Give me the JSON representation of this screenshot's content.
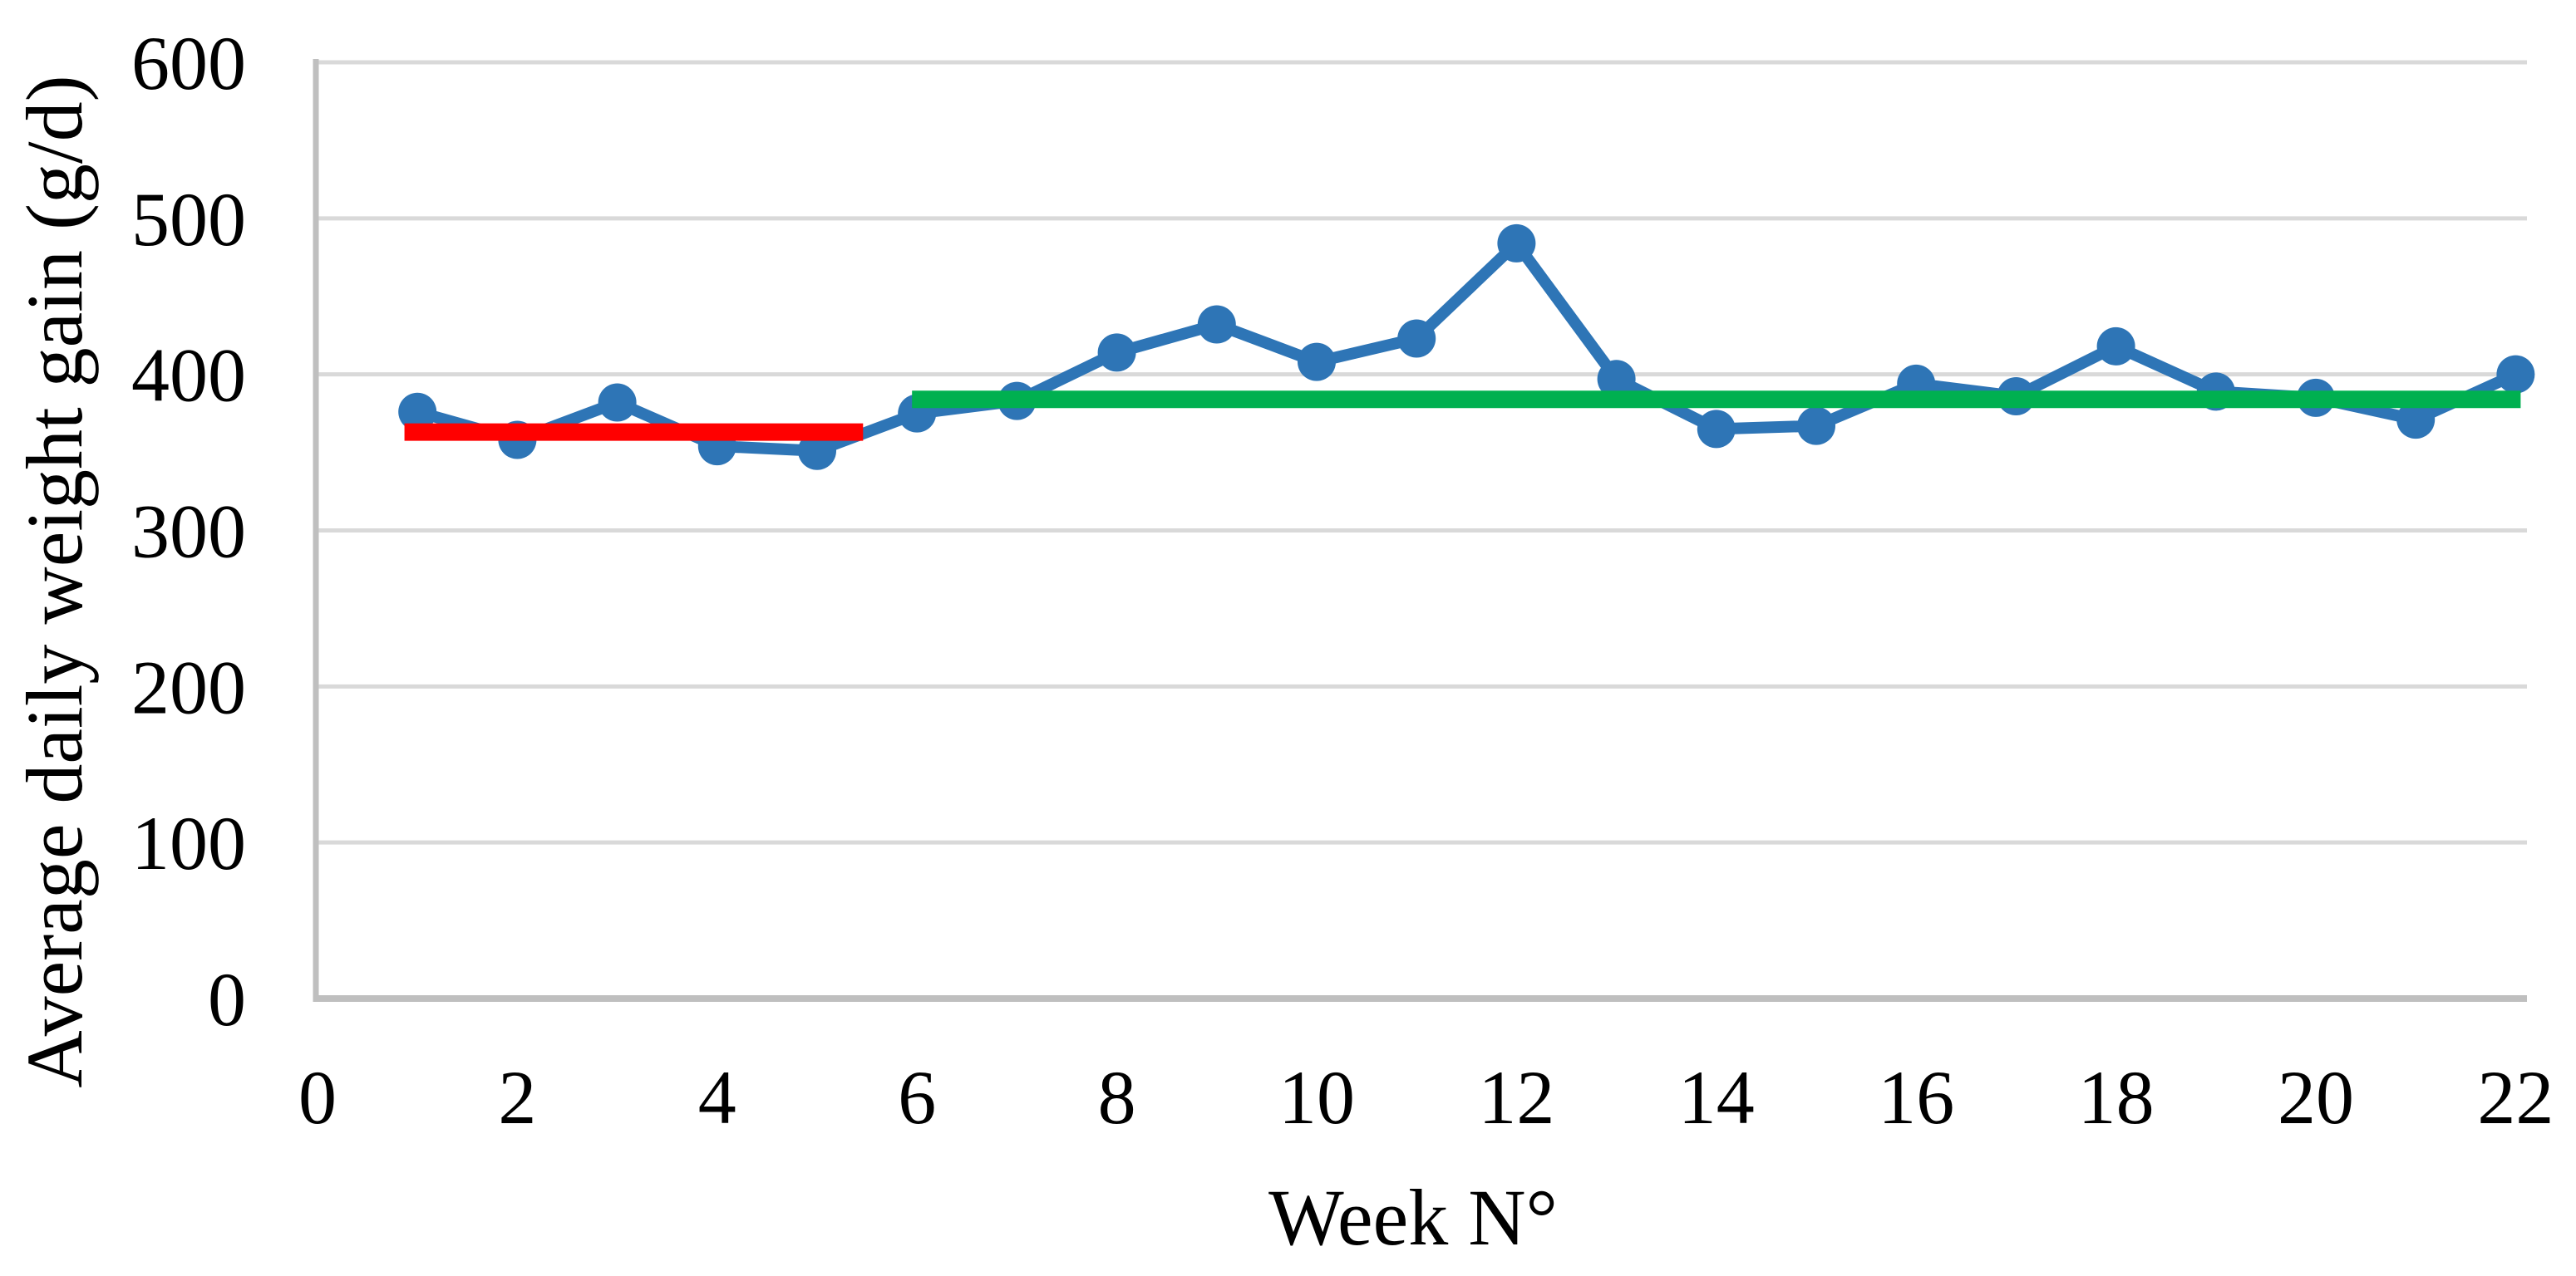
{
  "figure": {
    "background_color": "#FFFFFF",
    "description": "Line chart of average daily weight gain per week with two reference period lines"
  },
  "chart_data": {
    "type": "line",
    "title": "",
    "xlabel": "Week N°",
    "ylabel": "Average daily weight gain (g/d)",
    "x": [
      1,
      2,
      3,
      4,
      5,
      6,
      7,
      8,
      9,
      10,
      11,
      12,
      13,
      14,
      15,
      16,
      17,
      18,
      19,
      20,
      21,
      22
    ],
    "series": [
      {
        "name": "average-daily-weight-gain",
        "color": "#2E75B6",
        "marker": "circle",
        "values": [
          376,
          358,
          382,
          354,
          351,
          375,
          383,
          414,
          432,
          408,
          423,
          484,
          397,
          365,
          367,
          394,
          386,
          418,
          389,
          385,
          371,
          400
        ]
      }
    ],
    "reference_lines": [
      {
        "name": "period-1-reference",
        "color": "#FF0000",
        "value": 363,
        "x_start": 0.87,
        "x_end": 5.46
      },
      {
        "name": "period-2-reference",
        "color": "#00B050",
        "value": 384,
        "x_start": 5.95,
        "x_end": 22.05
      }
    ],
    "xlim": [
      0,
      22.35
    ],
    "ylim": [
      0,
      600
    ],
    "xticks": [
      0,
      2,
      4,
      6,
      8,
      10,
      12,
      14,
      16,
      18,
      20,
      22
    ],
    "yticks": [
      0,
      100,
      200,
      300,
      400,
      500,
      600
    ],
    "grid": "horizontal",
    "legend": "none",
    "grid_color": "#D9D9D9",
    "axis_color": "#BFBFBF",
    "text_color": "#000000"
  }
}
